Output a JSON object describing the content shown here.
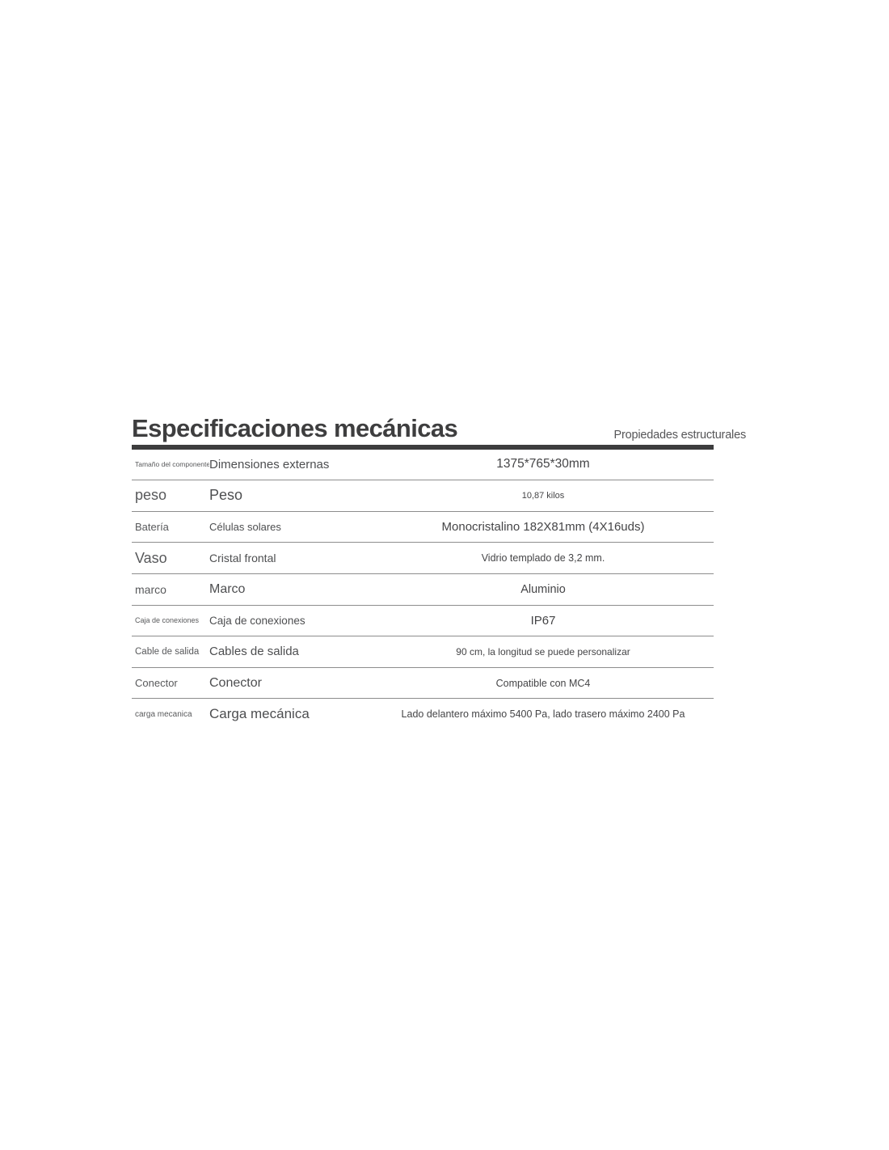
{
  "header": {
    "title": "Especificaciones mecánicas",
    "subtitle": "Propiedades estructurales"
  },
  "colors": {
    "title_text": "#3e3e3f",
    "heading_bar": "#3d3d3e",
    "row_separator": "#8d8d8d",
    "key_text": "#58595b",
    "label_text": "#4d4e50",
    "value_text": "#454547",
    "background": "#ffffff"
  },
  "table": {
    "rows": [
      {
        "key": "Tamaño del componente",
        "label": "Dimensiones externas",
        "value": "1375*765*30mm"
      },
      {
        "key": "peso",
        "label": "Peso",
        "value": "10,87 kilos"
      },
      {
        "key": "Batería",
        "label": "Células solares",
        "value": "Monocristalino 182X81mm (4X16uds)"
      },
      {
        "key": "Vaso",
        "label": "Cristal frontal",
        "value": "Vidrio templado de 3,2 mm."
      },
      {
        "key": "marco",
        "label": "Marco",
        "value": "Aluminio"
      },
      {
        "key": "Caja de conexiones",
        "label": "Caja de conexiones",
        "value": "IP67"
      },
      {
        "key": "Cable de salida",
        "label": "Cables de salida",
        "value": "90 cm, la longitud se puede personalizar"
      },
      {
        "key": "Conector",
        "label": "Conector",
        "value": "Compatible con MC4"
      },
      {
        "key": "carga mecanica",
        "label": "Carga mecánica",
        "value": "Lado delantero máximo 5400 Pa, lado trasero máximo 2400 Pa"
      }
    ]
  }
}
